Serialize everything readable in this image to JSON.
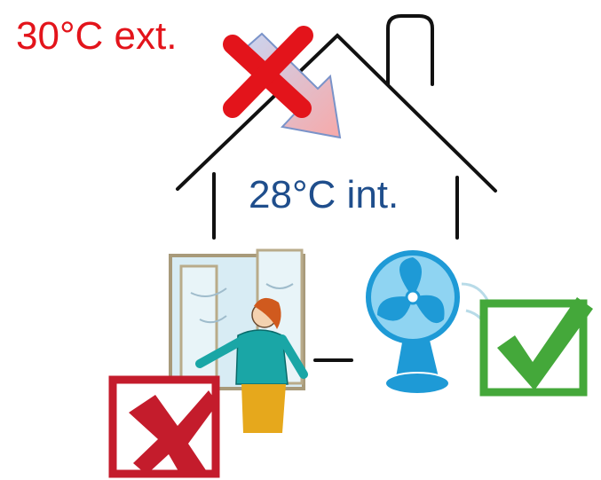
{
  "labels": {
    "exterior": "30°C ext.",
    "interior": "28°C int."
  }
}
